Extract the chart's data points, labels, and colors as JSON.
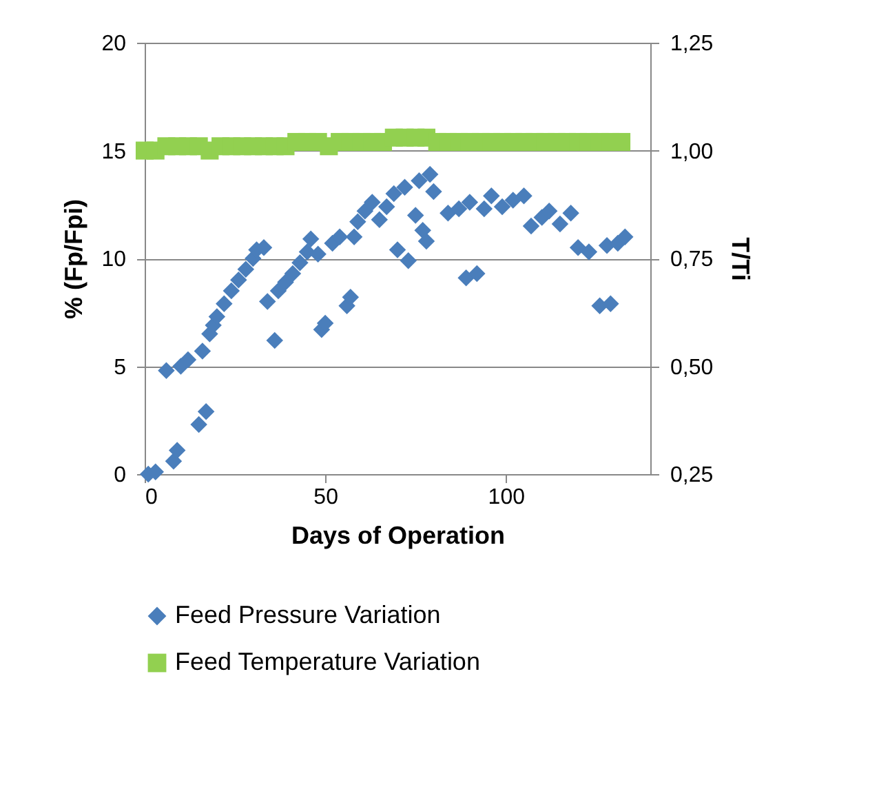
{
  "chart_data": {
    "type": "scatter",
    "xlabel": "Days of Operation",
    "ylabel": "% (Fp/Fpi)",
    "y2label": "T/Ti",
    "xlim": [
      0,
      140
    ],
    "xticks": [
      0,
      50,
      100
    ],
    "ylim": [
      0,
      20
    ],
    "yticks": [
      0,
      5,
      10,
      15,
      20
    ],
    "y2lim": [
      0.25,
      1.25
    ],
    "y2ticks": [
      {
        "value": 0.25,
        "label": "0,25"
      },
      {
        "value": 0.5,
        "label": "0,50"
      },
      {
        "value": 0.75,
        "label": "0,75"
      },
      {
        "value": 1,
        "label": "1,00"
      },
      {
        "value": 1.25,
        "label": "1,25"
      }
    ],
    "grid": "y",
    "legend": "bottom",
    "marker": "diamond",
    "series": [
      {
        "name": "Feed Pressure Variation",
        "color": "#4a7ebb",
        "x": [
          1,
          3,
          6,
          8,
          9,
          10,
          12,
          15,
          16,
          17,
          18,
          19,
          20,
          22,
          24,
          26,
          28,
          30,
          31,
          33,
          34,
          36,
          37,
          39,
          41,
          43,
          45,
          46,
          48,
          49,
          50,
          52,
          54,
          56,
          57,
          58,
          59,
          61,
          63,
          65,
          67,
          69,
          70,
          72,
          73,
          75,
          76,
          77,
          78,
          79,
          80,
          84,
          87,
          89,
          90,
          92,
          94,
          96,
          99,
          102,
          105,
          107,
          110,
          112,
          115,
          118,
          120,
          123,
          126,
          128,
          129,
          131,
          133
        ],
        "values": [
          0,
          0.1,
          4.8,
          0.6,
          1.1,
          5.0,
          5.3,
          2.3,
          5.7,
          2.9,
          6.5,
          6.9,
          7.3,
          7.9,
          8.5,
          9.0,
          9.5,
          10.0,
          10.4,
          10.5,
          8.0,
          6.2,
          8.5,
          8.9,
          9.3,
          9.8,
          10.3,
          10.9,
          10.2,
          6.7,
          7.0,
          10.7,
          11.0,
          7.8,
          8.2,
          11.0,
          11.7,
          12.2,
          12.6,
          11.8,
          12.4,
          13.0,
          10.4,
          13.3,
          9.9,
          12.0,
          13.6,
          11.3,
          10.8,
          13.9,
          13.1,
          12.1,
          12.3,
          9.1,
          12.6,
          9.3,
          12.3,
          12.9,
          12.4,
          12.7,
          12.9,
          11.5,
          11.9,
          12.2,
          11.6,
          12.1,
          10.5,
          10.3,
          7.8,
          10.6,
          7.9,
          10.7,
          11.0
        ]
      },
      {
        "name": "Feed Temperature Variation",
        "color": "#92d050",
        "axis": "y2",
        "marker": "square",
        "x": [
          0,
          3,
          6,
          9,
          12,
          15,
          18,
          21,
          24,
          27,
          30,
          33,
          36,
          39,
          42,
          45,
          48,
          51,
          54,
          57,
          60,
          63,
          66,
          69,
          72,
          75,
          78,
          81,
          84,
          87,
          90,
          93,
          96,
          99,
          102,
          105,
          108,
          111,
          114,
          117,
          120,
          123,
          126,
          129,
          132
        ],
        "values": [
          1.0,
          1.0,
          1.01,
          1.01,
          1.01,
          1.01,
          1.0,
          1.01,
          1.01,
          1.01,
          1.01,
          1.01,
          1.01,
          1.01,
          1.02,
          1.02,
          1.02,
          1.01,
          1.02,
          1.02,
          1.02,
          1.02,
          1.02,
          1.03,
          1.03,
          1.03,
          1.03,
          1.02,
          1.02,
          1.02,
          1.02,
          1.02,
          1.02,
          1.02,
          1.02,
          1.02,
          1.02,
          1.02,
          1.02,
          1.02,
          1.02,
          1.02,
          1.02,
          1.02,
          1.02
        ]
      }
    ]
  }
}
